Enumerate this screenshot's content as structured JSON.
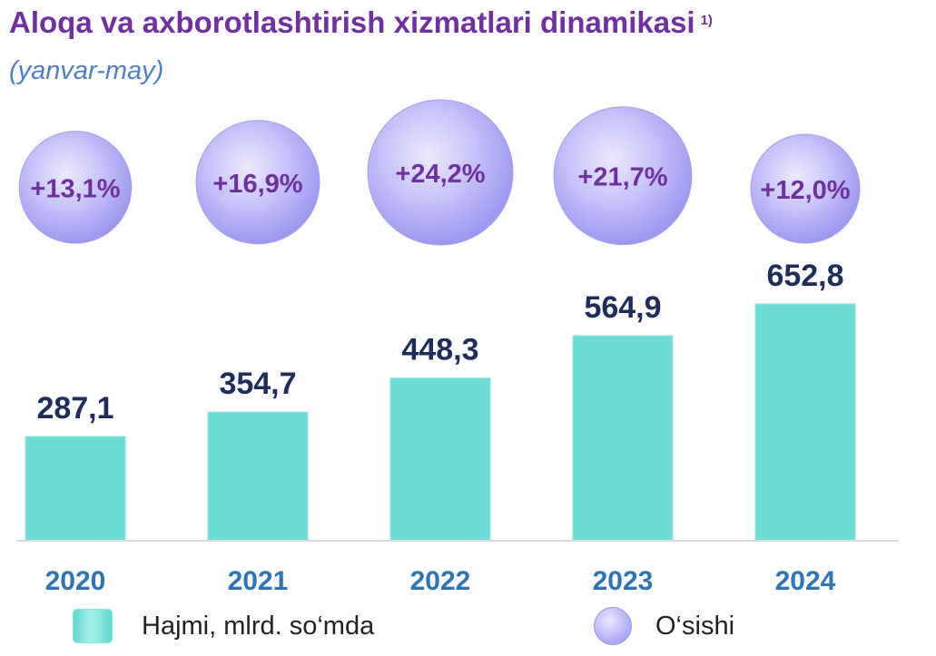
{
  "title": "Aloqa va axborotlashtirish xizmatlari dinamikasi",
  "title_footnote": "1)",
  "subtitle": "(yanvar-may)",
  "legend": {
    "bar_label": "Hajmi, mlrd. so‘mda",
    "circle_label": "O‘sishi"
  },
  "colors": {
    "title": "#7030a0",
    "subtitle": "#4f7fc4",
    "bar": "#6edcd6",
    "value_label": "#1f2d5a",
    "year_label": "#2e75b6",
    "circle_fill": "#bdb9f8",
    "growth_text": "#7030a0"
  },
  "chart_data": {
    "type": "bar",
    "categories": [
      "2020",
      "2021",
      "2022",
      "2023",
      "2024"
    ],
    "series": [
      {
        "name": "Hajmi, mlrd. so‘mda",
        "values": [
          287.1,
          354.7,
          448.3,
          564.9,
          652.8
        ],
        "labels": [
          "287,1",
          "354,7",
          "448,3",
          "564,9",
          "652,8"
        ]
      },
      {
        "name": "O‘sishi",
        "values": [
          13.1,
          16.9,
          24.2,
          21.7,
          12.0
        ],
        "labels": [
          "+13,1%",
          "+16,9%",
          "+24,2%",
          "+21,7%",
          "+12,0%"
        ]
      }
    ],
    "title": "Aloqa va axborotlashtirish xizmatlari dinamikasi",
    "subtitle": "(yanvar-may)",
    "xlabel": "",
    "ylabel": "",
    "ylim": [
      0,
      700
    ],
    "grid": false,
    "legend_position": "bottom"
  }
}
